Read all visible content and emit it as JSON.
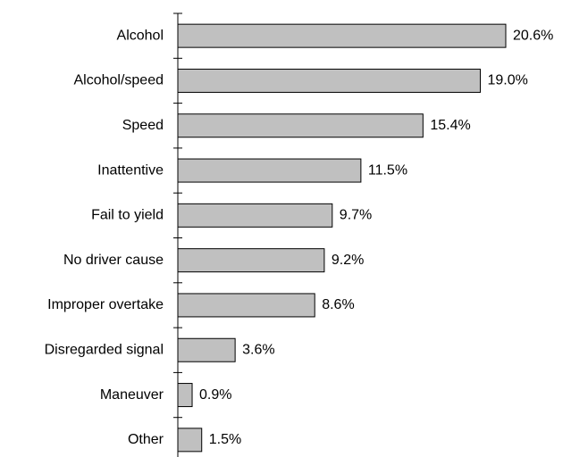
{
  "chart_data": {
    "type": "bar",
    "orientation": "horizontal",
    "categories": [
      "Alcohol",
      "Alcohol/speed",
      "Speed",
      "Inattentive",
      "Fail to yield",
      "No driver cause",
      "Improper overtake",
      "Disregarded signal",
      "Maneuver",
      "Other"
    ],
    "values": [
      20.6,
      19.0,
      15.4,
      11.5,
      9.7,
      9.2,
      8.6,
      3.6,
      0.9,
      1.5
    ],
    "value_labels": [
      "20.6%",
      "19.0%",
      "15.4%",
      "11.5%",
      "9.7%",
      "9.2%",
      "8.6%",
      "3.6%",
      "0.9%",
      "1.5%"
    ],
    "color": "#c0c0c0"
  }
}
